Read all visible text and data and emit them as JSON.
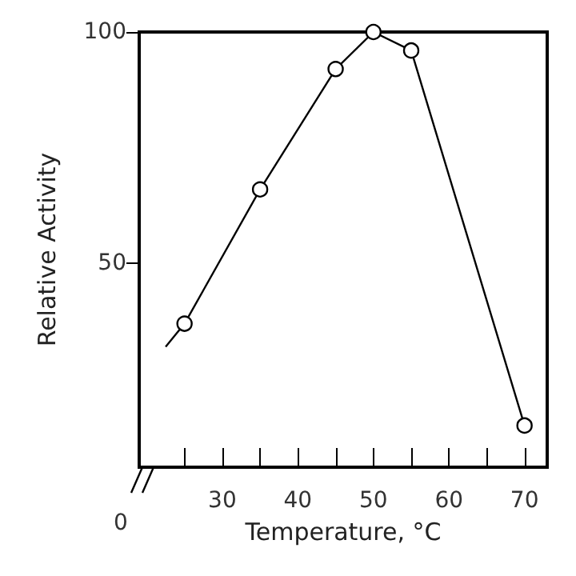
{
  "chart_data": {
    "type": "line",
    "xlabel": "Temperature, °C",
    "ylabel": "Relative Activity",
    "series": [
      {
        "color": "#000000",
        "x": [
          25,
          35,
          45,
          50,
          55,
          70
        ],
        "values": [
          37,
          66,
          92,
          100,
          96,
          15
        ],
        "marker": "circle"
      },
      {
        "color": "#000000",
        "x": [
          22.5,
          25
        ],
        "values": [
          32,
          37
        ],
        "marker": "none"
      }
    ],
    "xlim": [
      19,
      73
    ],
    "ylim": [
      6,
      100
    ],
    "xticks": [
      {
        "value": 25,
        "label": null
      },
      30,
      {
        "value": 35,
        "label": null
      },
      40,
      {
        "value": 45,
        "label": null
      },
      50,
      {
        "value": 55,
        "label": null
      },
      60,
      {
        "value": 65,
        "label": null
      },
      70
    ],
    "yticks": [
      50,
      100
    ],
    "annotations": [
      "0"
    ],
    "grid": false,
    "line_style": "solid"
  }
}
